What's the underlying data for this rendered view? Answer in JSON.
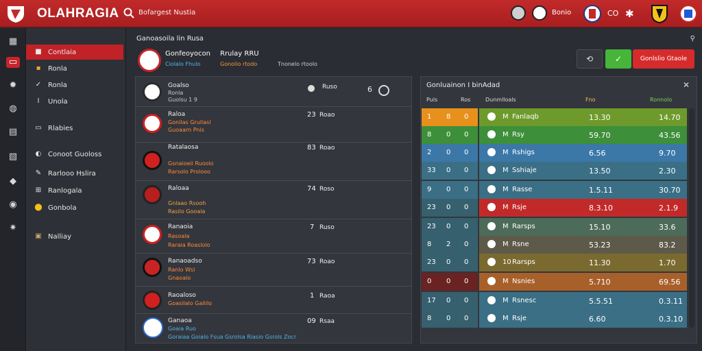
{
  "topbar": {
    "brand": "OLAHRAGIA",
    "search_text": "Bofargest Nustia",
    "user_label": "Bonio",
    "code_label": "CO"
  },
  "rail_icons": [
    "grid-icon",
    "tv-icon",
    "gear-icon",
    "globe-icon",
    "book-icon",
    "chart-icon",
    "shield-icon",
    "ball-icon",
    "settings-icon"
  ],
  "sidebar": {
    "items": [
      {
        "label": "Contlaia",
        "icon": "■",
        "active": true
      },
      {
        "label": "Ronla",
        "icon": "▪",
        "active": false
      },
      {
        "label": "Ronla",
        "icon": "✓",
        "active": false
      },
      {
        "label": "Unola",
        "icon": "I",
        "active": false
      },
      {
        "label": "Rlabies",
        "icon": "▭",
        "active": false
      },
      {
        "label": "Conoot Guoloss",
        "icon": "◐",
        "active": false
      },
      {
        "label": "Rarlooo Hslira",
        "icon": "✎",
        "active": false
      },
      {
        "label": "Ranlogala",
        "icon": "⊞",
        "active": false
      },
      {
        "label": "Gonbola",
        "icon": "⬤",
        "active": false
      },
      {
        "label": "Nalliay",
        "icon": "▣",
        "active": false
      }
    ]
  },
  "main": {
    "page_title": "Ganoasoila lin Rusa",
    "header": {
      "team_title": "Gonfeoyocon",
      "team_sub": "Ciolalo Fhulo",
      "col2_title": "Rrulay RRU",
      "col2_sub": "Gonolio rtodo",
      "col3_sub": "Tnonelo rtoolo"
    },
    "buttons": {
      "refresh_icon": "⟲",
      "green_icon": "✓",
      "red_label": "Gonlslio Gtaole"
    }
  },
  "matches": [
    {
      "name": "Goalso",
      "sub1": "Ronla",
      "sub2": "Guolsu 1 9",
      "score": "",
      "extra": "Ruso",
      "extra2": "6",
      "colors": [
        "#ffffff",
        "#2b2b2b"
      ],
      "sub_color": "#c9c9c9"
    },
    {
      "name": "Raloa",
      "sub1": "Gonilas Grullasl",
      "sub2": "Guoaarn Pnis",
      "score": "23",
      "extra": "Roao",
      "colors": [
        "#ffffff",
        "#d02020"
      ],
      "sub_color": "#ff8c3b"
    },
    {
      "name": "Ratalaosa",
      "sub1": "Gsnaioeii Ruoolo",
      "sub2": "Rarsolo Prolooo",
      "score": "83",
      "extra": "Roao",
      "colors": [
        "#d02020",
        "#111111"
      ],
      "sub_color": "#ff8c3b"
    },
    {
      "name": "Raloaa",
      "sub1": "Gnlaao Rsooh",
      "sub2": "Rasilo Gooala",
      "score": "74",
      "extra": "Roso",
      "colors": [
        "#b81e1e",
        "#222222"
      ],
      "sub_color": "#f1a24a"
    },
    {
      "name": "Ranaoia",
      "sub1": "Rasoala",
      "sub2": "Raraia Roaslolo",
      "score": "7",
      "extra": "Ruso",
      "colors": [
        "#ffffff",
        "#d02020"
      ],
      "sub_color": "#ff8c3b"
    },
    {
      "name": "Ranaoadso",
      "sub1": "Ranlo Wsl",
      "sub2": "Gnaoalo",
      "score": "73",
      "extra": "Roao",
      "colors": [
        "#c82424",
        "#111111"
      ],
      "sub_color": "#ff8c3b"
    },
    {
      "name": "Raoaloso",
      "sub1": "Goasilalo Galiilo",
      "sub2": "",
      "score": "1",
      "extra": "Raoa",
      "colors": [
        "#d02020",
        "#222222"
      ],
      "sub_color": "#ff8c3b"
    },
    {
      "name": "Ganaoa",
      "sub1": "Goaia Ruo",
      "sub2": "Goraiaa Goialo Fsua Gsrolsa Riasio Gsrols Zocr",
      "score": "09",
      "extra": "Rsaa",
      "colors": [
        "#ffffff",
        "#2f6fd0"
      ],
      "sub_color": "#4fb6e8"
    }
  ],
  "standings": {
    "title": "Gonluainon I binAdad",
    "headers": {
      "c1": "Puls",
      "c2": "Ros",
      "team": "Dunmlloals",
      "pts": "Fno",
      "form": "Ronnolo"
    },
    "rows": [
      {
        "a": "1",
        "b": "8",
        "c": "0",
        "team": "Fanlaqb",
        "pos": "M",
        "v1": "13.30",
        "v2": "14.70",
        "color": "#6e9a2b",
        "leftcolor": "#e8901c"
      },
      {
        "a": "8",
        "b": "0",
        "c": "0",
        "team": "Rsy",
        "pos": "M",
        "v1": "59.70",
        "v2": "43.56",
        "color": "#3d8f3a",
        "leftcolor": "#3d8f3a"
      },
      {
        "a": "2",
        "b": "0",
        "c": "0",
        "team": "Rshigs",
        "pos": "M",
        "v1": "6.56",
        "v2": "9.70",
        "color": "#3b78a8",
        "leftcolor": "#3b78a8"
      },
      {
        "a": "33",
        "b": "0",
        "c": "0",
        "team": "Sshiaje",
        "pos": "M",
        "v1": "13.50",
        "v2": "2.30",
        "color": "#3a6f86",
        "leftcolor": "#3a6f86"
      },
      {
        "a": "9",
        "b": "0",
        "c": "0",
        "team": "Rasse",
        "pos": "M",
        "v1": "1.5.11",
        "v2": "30.70",
        "color": "#3a6f86",
        "leftcolor": "#3a6f86"
      },
      {
        "a": "23",
        "b": "0",
        "c": "0",
        "team": "Rsje",
        "pos": "M",
        "v1": "8.3.10",
        "v2": "2.1.9",
        "color": "#c22a2a",
        "leftcolor": "#36606e"
      },
      {
        "a": "23",
        "b": "0",
        "c": "0",
        "team": "Rarsps",
        "pos": "M",
        "v1": "15.10",
        "v2": "33.6",
        "color": "#4d6b59",
        "leftcolor": "#36606e"
      },
      {
        "a": "8",
        "b": "2",
        "c": "0",
        "team": "Rsne",
        "pos": "M",
        "v1": "53.23",
        "v2": "83.2",
        "color": "#5e5a4a",
        "leftcolor": "#36606e"
      },
      {
        "a": "23",
        "b": "0",
        "c": "0",
        "team": "Rarsps",
        "pos": "10",
        "v1": "11.30",
        "v2": "1.70",
        "color": "#7a6a30",
        "leftcolor": "#36606e"
      },
      {
        "a": "0",
        "b": "0",
        "c": "0",
        "team": "Nsnies",
        "pos": "M",
        "v1": "5.710",
        "v2": "69.56",
        "color": "#a8602a",
        "leftcolor": "#6a2222"
      },
      {
        "a": "17",
        "b": "0",
        "c": "0",
        "team": "Rsnesc",
        "pos": "M",
        "v1": "5.5.51",
        "v2": "0.3.11",
        "color": "#3a6f86",
        "leftcolor": "#36606e"
      },
      {
        "a": "8",
        "b": "0",
        "c": "0",
        "team": "Rsje",
        "pos": "M",
        "v1": "6.60",
        "v2": "0.3.10",
        "color": "#3a6f86",
        "leftcolor": "#36606e"
      }
    ]
  }
}
